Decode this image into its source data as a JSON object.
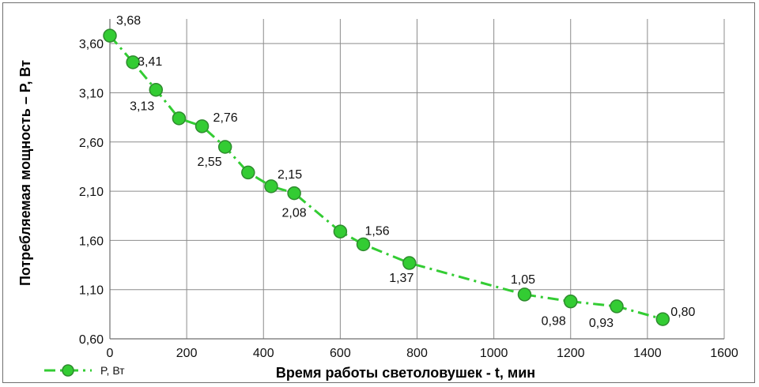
{
  "chart_data": {
    "type": "line",
    "title": "",
    "xlabel": "Время работы светоловушек - t, мин",
    "ylabel": "Потребляемая мощность  – P, Вт",
    "xlim": [
      0,
      1600
    ],
    "ylim": [
      0.6,
      3.85
    ],
    "x_ticks": [
      "0",
      "200",
      "400",
      "600",
      "800",
      "1000",
      "1200",
      "1400",
      "1600"
    ],
    "y_ticks": [
      "0,60",
      "1,10",
      "1,60",
      "2,10",
      "2,60",
      "3,10",
      "3,60"
    ],
    "grid": true,
    "legend_position": "bottom-left",
    "series": [
      {
        "name": "P, Вт",
        "color": "#33cc33",
        "line_style": "dash-dot",
        "x": [
          0,
          60,
          120,
          180,
          240,
          300,
          360,
          420,
          480,
          600,
          660,
          780,
          1080,
          1200,
          1320,
          1440
        ],
        "y": [
          3.68,
          3.41,
          3.13,
          2.84,
          2.76,
          2.55,
          2.29,
          2.15,
          2.08,
          1.69,
          1.56,
          1.37,
          1.05,
          0.98,
          0.93,
          0.8
        ],
        "labels": [
          "3,68",
          "3,41",
          "3,13",
          "",
          "2,76",
          "2,55",
          "",
          "2,15",
          "2,08",
          "",
          "1,56",
          "1,37",
          "1,05",
          "0,98",
          "0,93",
          "0,80"
        ]
      }
    ]
  }
}
